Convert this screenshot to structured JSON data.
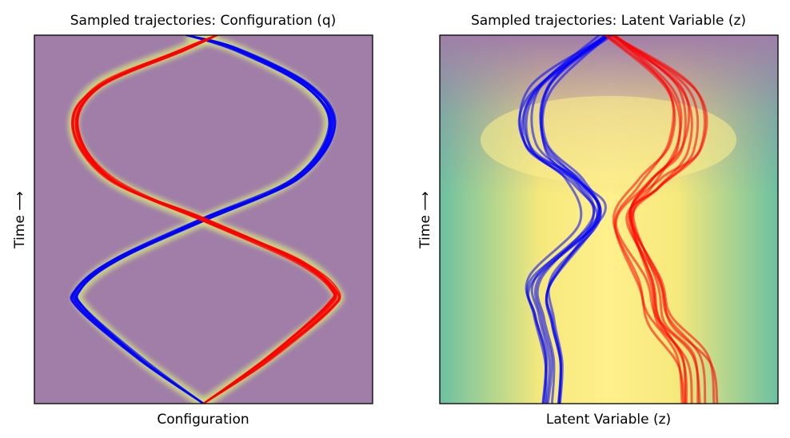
{
  "chart_data": [
    {
      "type": "line",
      "title": "Sampled trajectories: Configuration (q)",
      "xlabel": "Configuration",
      "ylabel": "Time ⟶",
      "xticks": [],
      "yticks": [],
      "xlim": [
        -1,
        1
      ],
      "ylim": [
        0,
        1
      ],
      "grid": false,
      "legend": "none",
      "background": {
        "type": "density",
        "cmap": "viridis",
        "alpha": 0.5
      },
      "series": [
        {
          "color": "#0000ff",
          "count": 10,
          "points": [
            [
              0,
              0
            ],
            [
              -0.37,
              0.12
            ],
            [
              -0.72,
              0.26
            ],
            [
              -0.74,
              0.31
            ],
            [
              -0.52,
              0.39
            ],
            [
              0,
              0.5
            ],
            [
              0.55,
              0.61
            ],
            [
              0.76,
              0.75
            ],
            [
              0.62,
              0.86
            ],
            [
              0.2,
              0.96
            ],
            [
              -0.1,
              1
            ]
          ]
        },
        {
          "color": "#ff0000",
          "count": 10,
          "points": [
            [
              0,
              0
            ],
            [
              0.38,
              0.12
            ],
            [
              0.74,
              0.26
            ],
            [
              0.77,
              0.31
            ],
            [
              0.55,
              0.39
            ],
            [
              0,
              0.5
            ],
            [
              -0.55,
              0.61
            ],
            [
              -0.76,
              0.75
            ],
            [
              -0.62,
              0.86
            ],
            [
              -0.12,
              0.96
            ],
            [
              0.08,
              1
            ]
          ]
        }
      ]
    },
    {
      "type": "line",
      "title": "Sampled trajectories: Latent Variable (z)",
      "xlabel": "Latent Variable (z)",
      "ylabel": "Time ⟶",
      "xticks": [],
      "yticks": [],
      "xlim": [
        -1,
        1
      ],
      "ylim": [
        0,
        1
      ],
      "grid": false,
      "legend": "none",
      "background": {
        "type": "density",
        "cmap": "viridis",
        "alpha": 0.5
      },
      "series": [
        {
          "color": "#0000ff",
          "count": 10,
          "points": [
            [
              -0.35,
              0
            ],
            [
              -0.34,
              0.12
            ],
            [
              -0.4,
              0.23
            ],
            [
              -0.42,
              0.33
            ],
            [
              -0.1,
              0.5
            ],
            [
              -0.2,
              0.6
            ],
            [
              -0.45,
              0.7
            ],
            [
              -0.42,
              0.85
            ],
            [
              -0.02,
              1
            ]
          ]
        },
        {
          "color": "#ff0000",
          "count": 10,
          "points": [
            [
              0.55,
              0
            ],
            [
              0.52,
              0.12
            ],
            [
              0.33,
              0.23
            ],
            [
              0.28,
              0.33
            ],
            [
              0.12,
              0.5
            ],
            [
              0.28,
              0.6
            ],
            [
              0.48,
              0.7
            ],
            [
              0.45,
              0.85
            ],
            [
              0.02,
              1
            ]
          ]
        }
      ]
    }
  ]
}
